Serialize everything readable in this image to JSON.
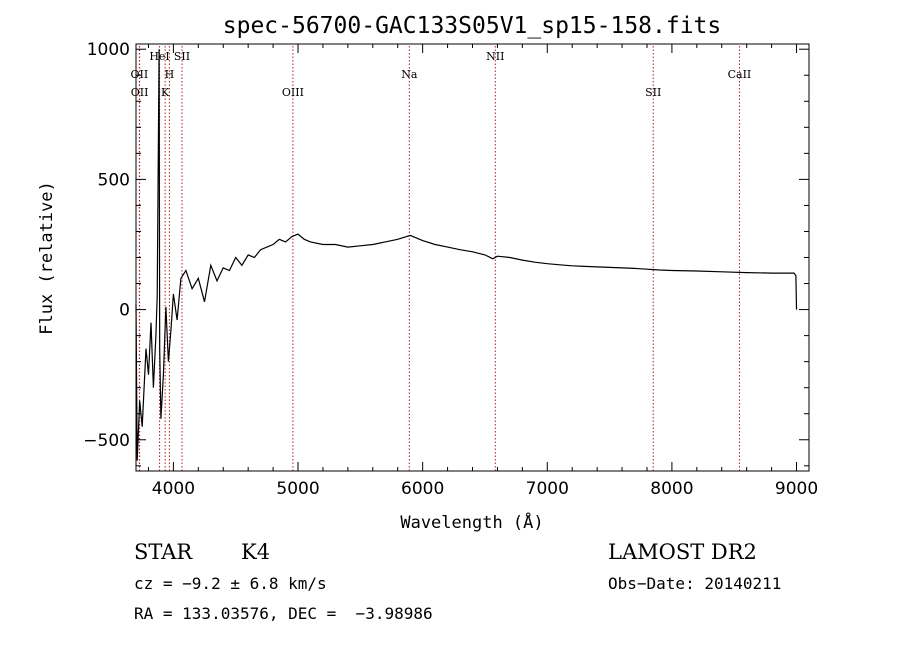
{
  "chart_data": {
    "type": "line",
    "title": "spec-56700-GAC133S05V1_sp15-158.fits",
    "xlabel": "Wavelength (Å)",
    "ylabel": "Flux (relative)",
    "xlim": [
      3700,
      9100
    ],
    "ylim": [
      -620,
      1020
    ],
    "x_ticks": [
      4000,
      5000,
      6000,
      7000,
      8000,
      9000
    ],
    "x_tick_labels": [
      "4000",
      "5000",
      "6000",
      "7000",
      "8000",
      "9000"
    ],
    "y_ticks": [
      -500,
      0,
      500,
      1000
    ],
    "y_tick_labels": [
      "−500",
      "0",
      "500",
      "1000"
    ],
    "grid": false,
    "line_color": "#000000",
    "marker_color": "#b22222",
    "spectrum": {
      "x": [
        3700,
        3710,
        3730,
        3750,
        3780,
        3800,
        3820,
        3840,
        3860,
        3870,
        3885,
        3890,
        3900,
        3920,
        3940,
        3960,
        3980,
        4000,
        4030,
        4060,
        4100,
        4150,
        4200,
        4250,
        4300,
        4350,
        4400,
        4450,
        4500,
        4550,
        4600,
        4650,
        4700,
        4750,
        4800,
        4850,
        4900,
        4950,
        5000,
        5050,
        5100,
        5200,
        5300,
        5400,
        5500,
        5600,
        5700,
        5800,
        5900,
        6000,
        6100,
        6200,
        6300,
        6400,
        6500,
        6563,
        6600,
        6700,
        6800,
        6900,
        7000,
        7100,
        7200,
        7300,
        7400,
        7500,
        7600,
        7700,
        7800,
        7900,
        8000,
        8200,
        8400,
        8600,
        8800,
        8980,
        8995,
        9000
      ],
      "y": [
        20,
        -580,
        -350,
        -450,
        -150,
        -250,
        -50,
        -300,
        -100,
        50,
        1000,
        -150,
        -420,
        -250,
        10,
        -200,
        -80,
        60,
        -40,
        120,
        150,
        80,
        120,
        30,
        170,
        110,
        160,
        150,
        200,
        170,
        210,
        200,
        230,
        240,
        250,
        270,
        260,
        280,
        290,
        270,
        260,
        250,
        250,
        240,
        245,
        250,
        260,
        270,
        285,
        265,
        250,
        240,
        230,
        222,
        210,
        195,
        205,
        200,
        190,
        182,
        176,
        172,
        168,
        166,
        164,
        162,
        160,
        158,
        155,
        152,
        150,
        148,
        145,
        142,
        140,
        140,
        130,
        0
      ]
    },
    "annotations": [
      {
        "label": "OII",
        "wavelength": 3727,
        "row": 1
      },
      {
        "label": "OII",
        "wavelength": 3729,
        "row": 2
      },
      {
        "label": "HeI",
        "wavelength": 3889,
        "row": 0
      },
      {
        "label": "H",
        "wavelength": 3968,
        "row": 1
      },
      {
        "label": "K",
        "wavelength": 3934,
        "row": 2
      },
      {
        "label": "SII",
        "wavelength": 4069,
        "row": 0
      },
      {
        "label": "OIII",
        "wavelength": 4959,
        "row": 2
      },
      {
        "label": "Na",
        "wavelength": 5893,
        "row": 1
      },
      {
        "label": "NII",
        "wavelength": 6583,
        "row": 0
      },
      {
        "label": "SII",
        "wavelength": 7850,
        "row": 2
      },
      {
        "label": "CaII",
        "wavelength": 8542,
        "row": 1
      }
    ]
  },
  "info": {
    "class_label": "STAR",
    "subclass": "K4",
    "survey": "LAMOST DR2",
    "cz": "cz = −9.2 ± 6.8 km/s",
    "obs_date": "Obs−Date: 20140211",
    "radec": "RA = 133.03576, DEC =  −3.98986"
  }
}
